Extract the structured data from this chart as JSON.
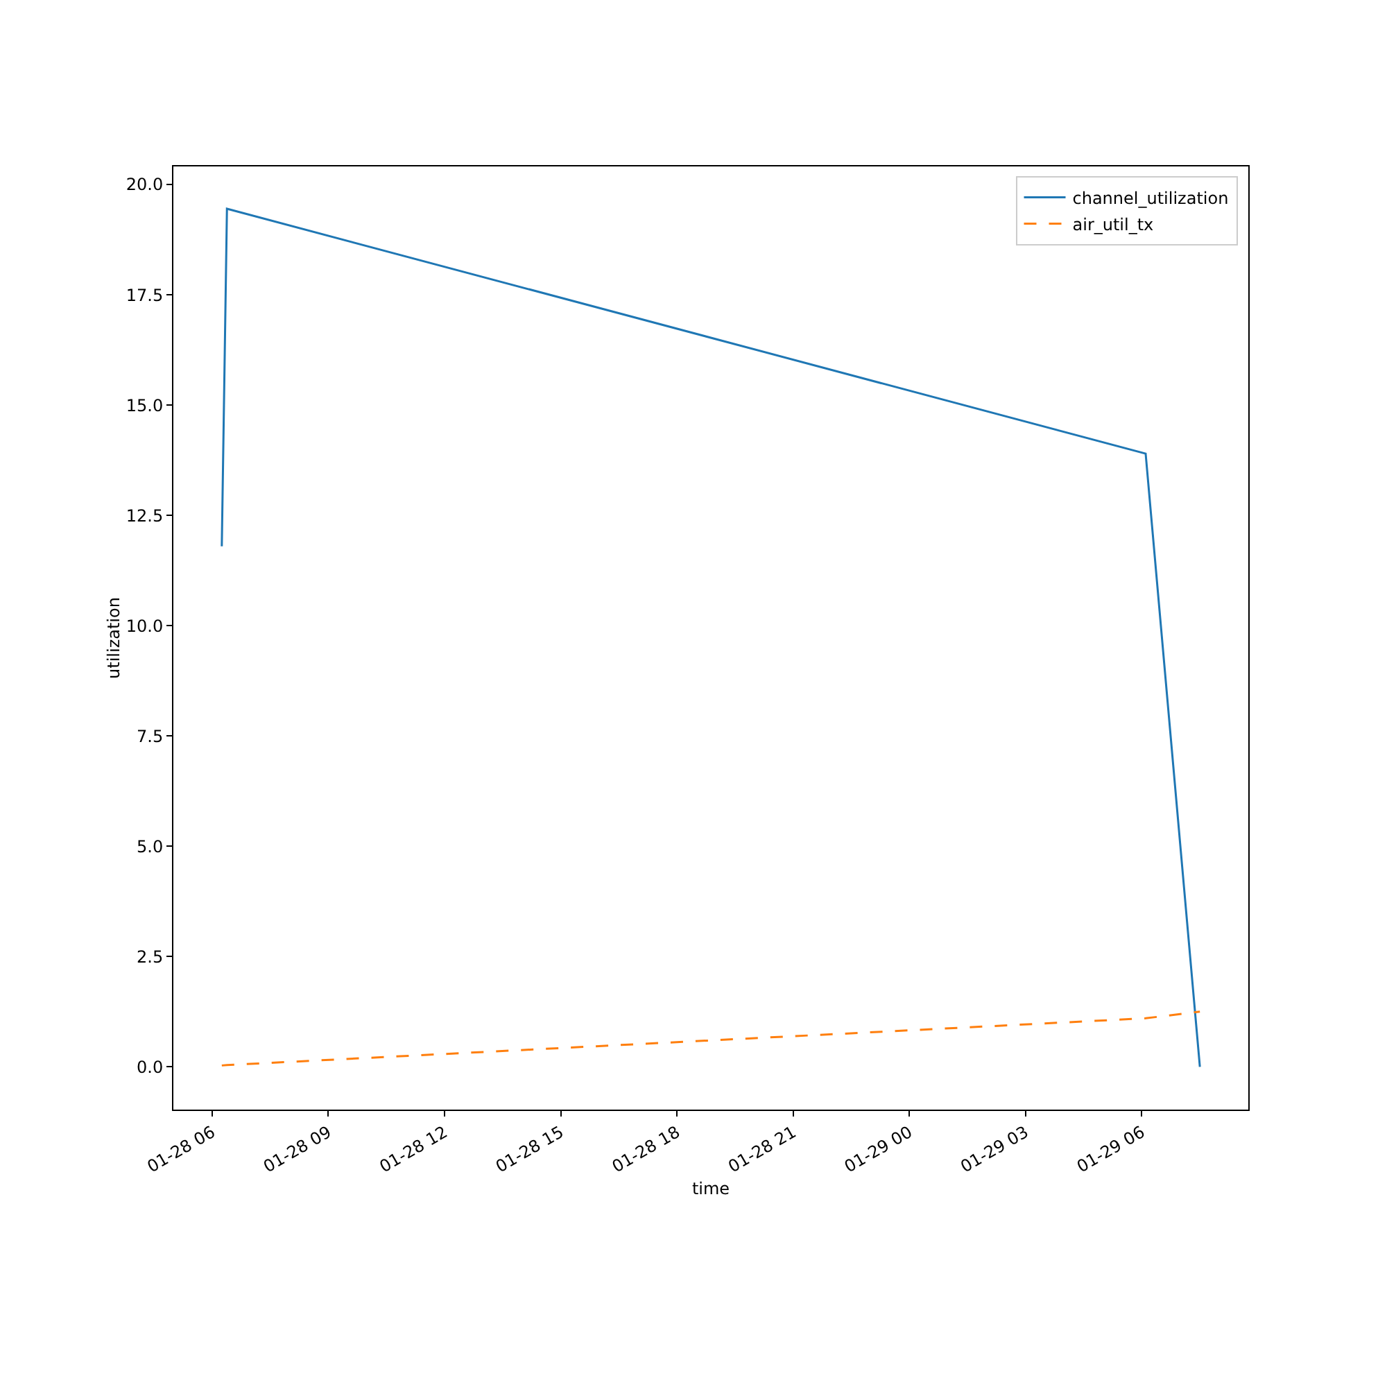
{
  "chart_data": {
    "type": "line",
    "xlabel": "time",
    "ylabel": "utilization",
    "x": [
      "--01-28T06:15",
      "--01-28T06:23",
      "--01-29T06:06",
      "--01-29T07:30"
    ],
    "series": [
      {
        "name": "channel_utilization",
        "color": "#1f77b4",
        "values": [
          11.8,
          19.45,
          13.9,
          0
        ],
        "line_style": "solid"
      },
      {
        "name": "air_util_tx",
        "color": "#ff7f0e",
        "values": [
          0.03,
          0.04,
          1.1,
          1.25
        ],
        "line_style": "dashed"
      }
    ],
    "xlim": [
      "--01-28T05:00",
      "--01-29T08:45"
    ],
    "xticks": [
      {
        "value": "--01-28T06:00",
        "label": "01-28 06"
      },
      {
        "value": "--01-28T09:00",
        "label": "01-28 09"
      },
      {
        "value": "--01-28T12:00",
        "label": "01-28 12"
      },
      {
        "value": "--01-28T15:00",
        "label": "01-28 15"
      },
      {
        "value": "--01-28T18:00",
        "label": "01-28 18"
      },
      {
        "value": "--01-28T21:00",
        "label": "01-28 21"
      },
      {
        "value": "--01-29T00:00",
        "label": "01-29 00"
      },
      {
        "value": "--01-29T03:00",
        "label": "01-29 03"
      },
      {
        "value": "--01-29T06:00",
        "label": "01-29 06"
      }
    ],
    "ylim": [
      -0.97,
      20.41
    ],
    "yticks": [
      {
        "value": 0,
        "label": "0.0"
      },
      {
        "value": 2.5,
        "label": "2.5"
      },
      {
        "value": 5,
        "label": "5.0"
      },
      {
        "value": 7.5,
        "label": "7.5"
      },
      {
        "value": 10,
        "label": "10.0"
      },
      {
        "value": 12.5,
        "label": "12.5"
      },
      {
        "value": 15,
        "label": "15.0"
      },
      {
        "value": 17.5,
        "label": "17.5"
      },
      {
        "value": 20,
        "label": "20.0"
      }
    ],
    "grid": false,
    "legend": "top right",
    "marker": "none"
  }
}
